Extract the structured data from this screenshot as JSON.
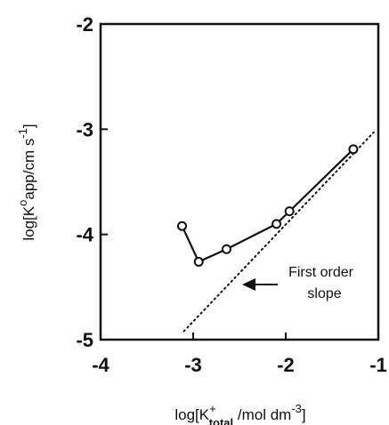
{
  "chart_data": {
    "type": "line",
    "title": "",
    "xlabel": "log[K+total /mol dm-3]",
    "xlabel_parts": {
      "base": "log[K",
      "sup": "+",
      "sub": "total",
      "unit": " /mol dm",
      "unit_sup": "-3",
      "close": "]"
    },
    "ylabel": "log[k°app/cm s-1]",
    "ylabel_parts": {
      "base": "log[K",
      "sup": "o",
      "mid": "app/cm s",
      "sup2": "-1",
      "close": "]"
    },
    "xlim": [
      -4,
      -1
    ],
    "ylim": [
      -5,
      -2
    ],
    "x_ticks": [
      -4,
      -3,
      -2,
      -1
    ],
    "x_tick_labels": [
      "-4",
      "-3",
      "-2",
      "-1"
    ],
    "y_ticks": [
      -5,
      -4,
      -3,
      -2
    ],
    "y_tick_labels": [
      "-5",
      "-4",
      "-3",
      "-2"
    ],
    "grid": false,
    "series": [
      {
        "style": "solid-line-open-circles",
        "x": [
          -3.12,
          -2.94,
          -2.64,
          -2.1,
          -1.96,
          -1.27
        ],
        "y": [
          -3.92,
          -4.26,
          -4.14,
          -3.9,
          -3.78,
          -3.19
        ]
      },
      {
        "style": "dotted-line",
        "x": [
          -3.1,
          -1.05
        ],
        "y": [
          -4.92,
          -3.03
        ]
      }
    ],
    "annotations": [
      {
        "text_lines": [
          "First order",
          "slope"
        ],
        "x": -1.62,
        "y": -4.5
      }
    ]
  }
}
